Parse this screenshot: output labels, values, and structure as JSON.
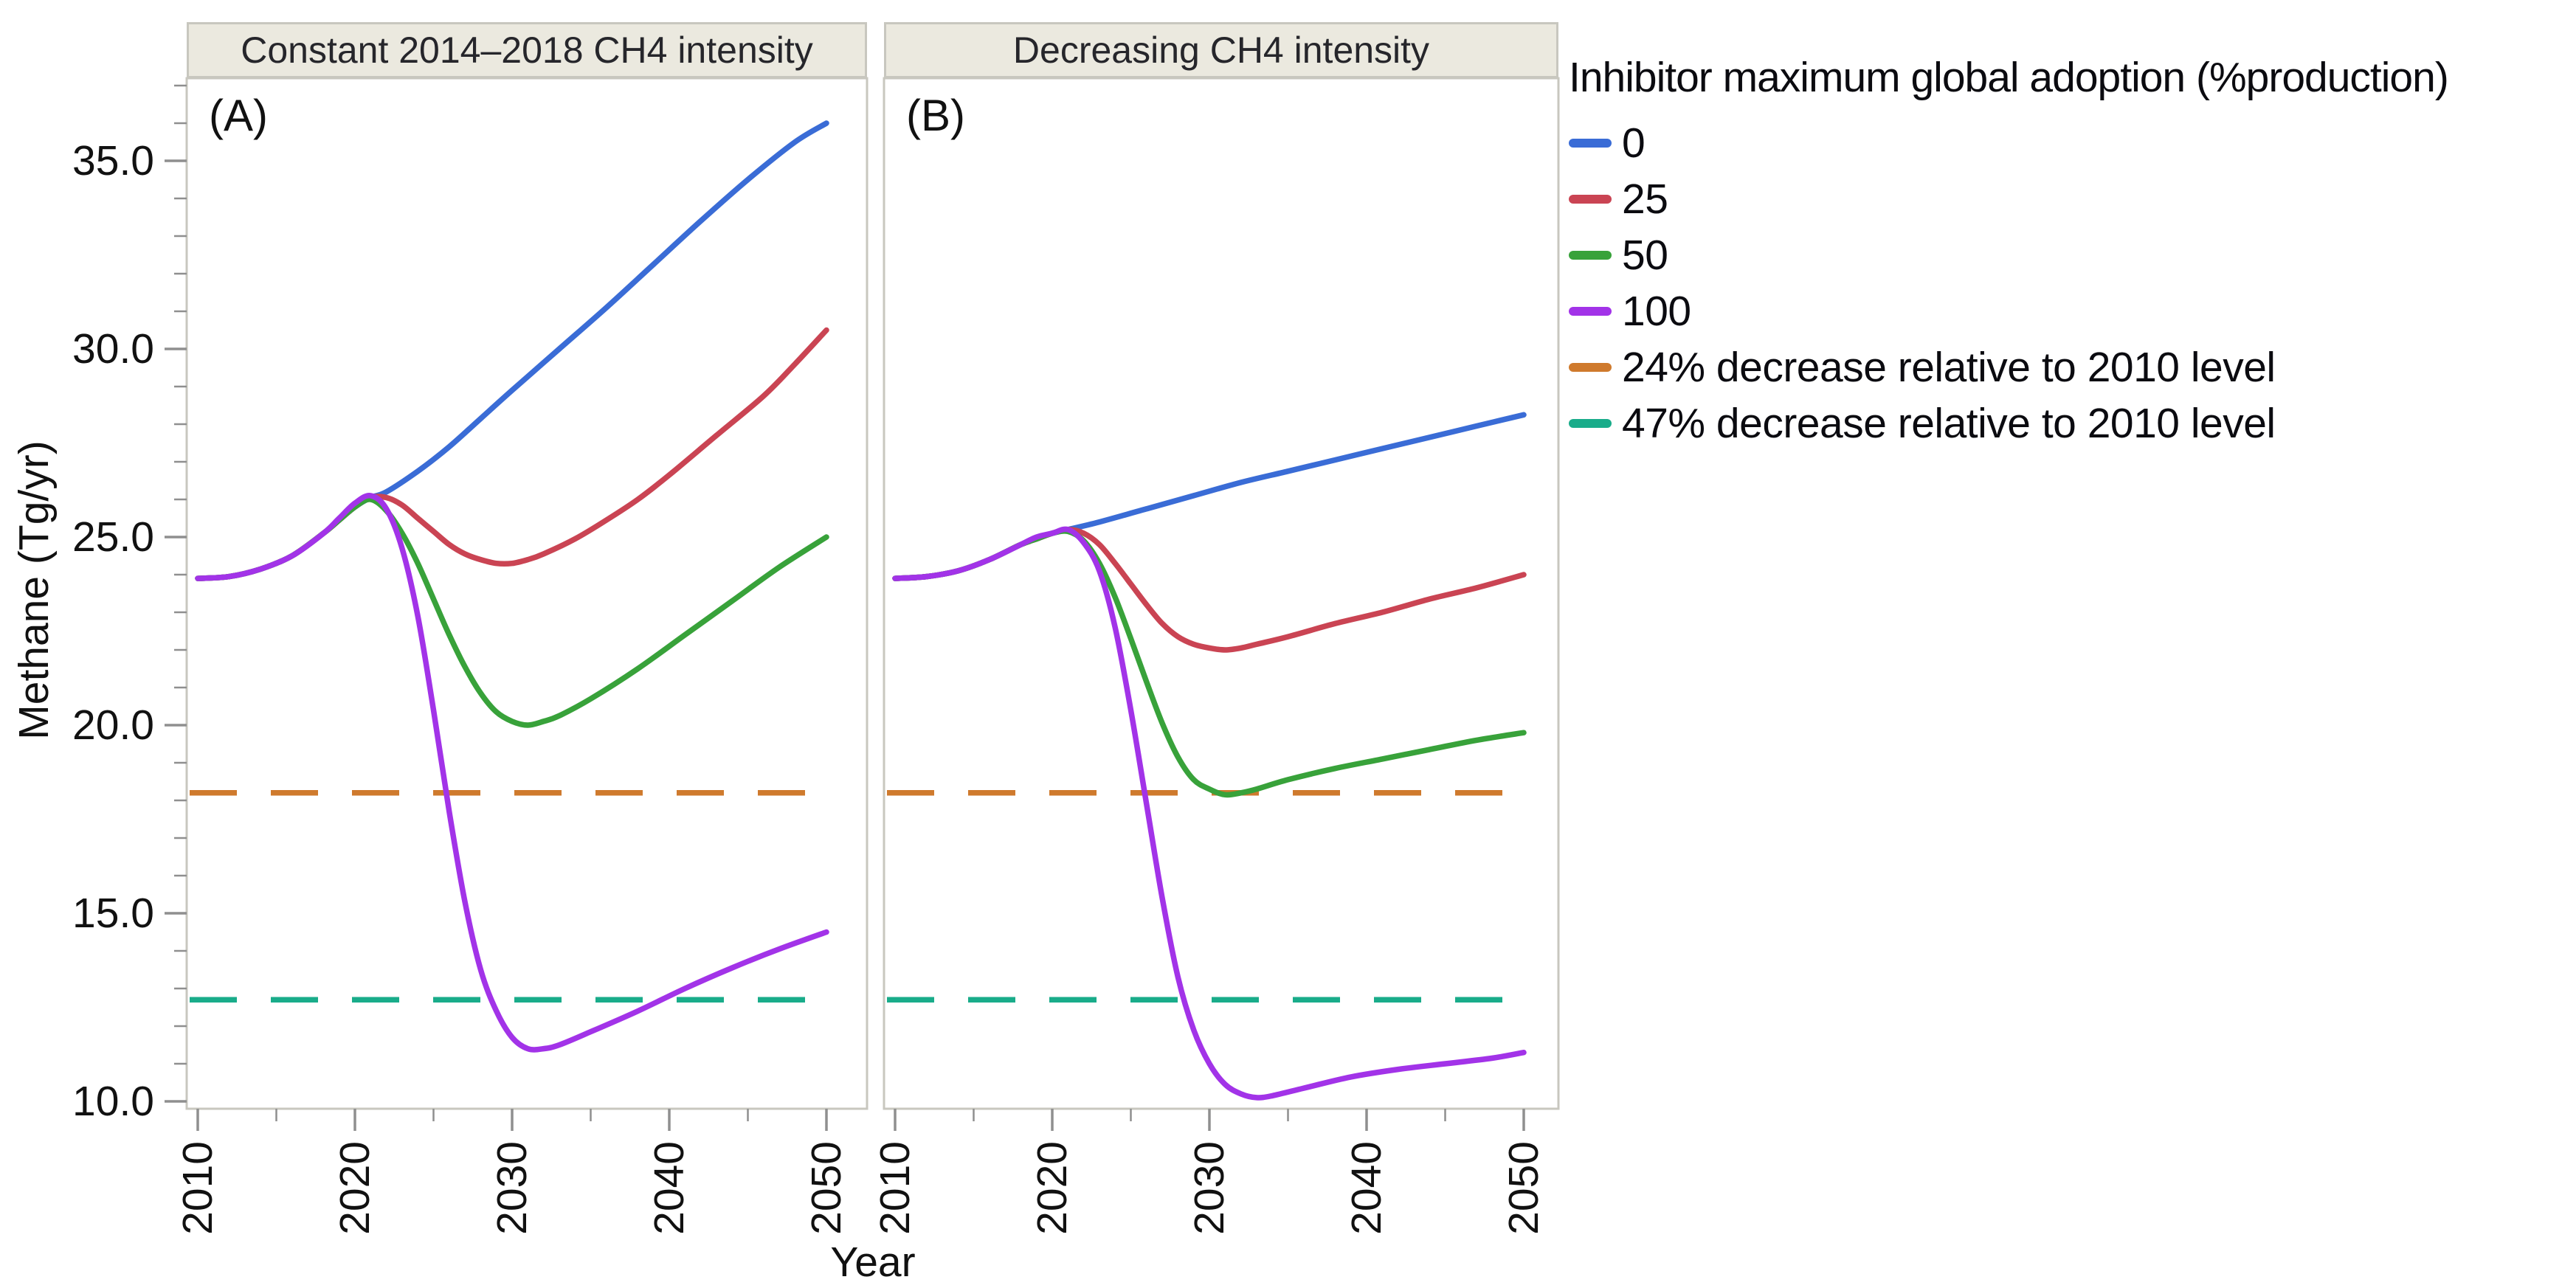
{
  "figure": {
    "y_axis_title": "Methane (Tg/yr)",
    "x_axis_title": "Year"
  },
  "legend": {
    "title": "Inhibitor maximum global adoption (%production)",
    "entries": [
      {
        "label": "0",
        "color": "#3A6CD6",
        "dashed": false
      },
      {
        "label": "25",
        "color": "#CA4453",
        "dashed": false
      },
      {
        "label": "50",
        "color": "#38A23A",
        "dashed": false
      },
      {
        "label": "100",
        "color": "#A233E8",
        "dashed": false
      },
      {
        "label": "24% decrease relative to 2010 level",
        "color": "#CF7A2D",
        "dashed": true
      },
      {
        "label": "47% decrease relative to 2010 level",
        "color": "#19AC8A",
        "dashed": true
      }
    ]
  },
  "colors": {
    "frame": "#C8C7BF",
    "tick": "#8F8F8F",
    "tick_text": "#111111",
    "strip_bg": "#EBE9DF",
    "strip_border": "#C8C7BF"
  },
  "chart_data": [
    {
      "type": "line",
      "title": "Constant 2014–2018 CH4 intensity",
      "panel_label": "(A)",
      "xlabel": "Year",
      "ylabel": "Methane (Tg/yr)",
      "x_range": [
        2009,
        2053
      ],
      "y_range": [
        9.8,
        37.3
      ],
      "x_ticks": [
        "2010",
        "2020",
        "2030",
        "2040",
        "2050"
      ],
      "x_minor_ticks": [
        2015,
        2025,
        2035,
        2045
      ],
      "y_ticks": [
        {
          "label": "10.0",
          "value": 10
        },
        {
          "label": "15.0",
          "value": 15
        },
        {
          "label": "20.0",
          "value": 20
        },
        {
          "label": "25.0",
          "value": 25
        },
        {
          "label": "30.0",
          "value": 30
        },
        {
          "label": "35.0",
          "value": 35
        }
      ],
      "series": [
        {
          "name": "0",
          "color": "#3A6CD6",
          "points": [
            [
              2010,
              23.9
            ],
            [
              2012,
              23.95
            ],
            [
              2014,
              24.15
            ],
            [
              2016,
              24.5
            ],
            [
              2018,
              25.1
            ],
            [
              2019,
              25.45
            ],
            [
              2020,
              25.8
            ],
            [
              2021,
              26.05
            ],
            [
              2022,
              26.2
            ],
            [
              2024,
              26.75
            ],
            [
              2026,
              27.4
            ],
            [
              2028,
              28.15
            ],
            [
              2030,
              28.9
            ],
            [
              2033,
              30.0
            ],
            [
              2036,
              31.1
            ],
            [
              2039,
              32.25
            ],
            [
              2042,
              33.4
            ],
            [
              2045,
              34.5
            ],
            [
              2048,
              35.5
            ],
            [
              2050,
              36.0
            ]
          ]
        },
        {
          "name": "25",
          "color": "#CA4453",
          "points": [
            [
              2010,
              23.9
            ],
            [
              2012,
              23.95
            ],
            [
              2014,
              24.15
            ],
            [
              2016,
              24.5
            ],
            [
              2018,
              25.1
            ],
            [
              2019,
              25.45
            ],
            [
              2020,
              25.8
            ],
            [
              2021,
              26.05
            ],
            [
              2022,
              26.05
            ],
            [
              2023,
              25.85
            ],
            [
              2024,
              25.5
            ],
            [
              2025,
              25.15
            ],
            [
              2026,
              24.8
            ],
            [
              2027,
              24.55
            ],
            [
              2028,
              24.4
            ],
            [
              2029,
              24.3
            ],
            [
              2030,
              24.3
            ],
            [
              2031,
              24.4
            ],
            [
              2032,
              24.55
            ],
            [
              2034,
              24.95
            ],
            [
              2036,
              25.45
            ],
            [
              2038,
              26.0
            ],
            [
              2040,
              26.65
            ],
            [
              2043,
              27.7
            ],
            [
              2046,
              28.75
            ],
            [
              2048,
              29.6
            ],
            [
              2050,
              30.5
            ]
          ]
        },
        {
          "name": "50",
          "color": "#38A23A",
          "points": [
            [
              2010,
              23.9
            ],
            [
              2012,
              23.95
            ],
            [
              2014,
              24.15
            ],
            [
              2016,
              24.5
            ],
            [
              2018,
              25.1
            ],
            [
              2019,
              25.45
            ],
            [
              2020,
              25.8
            ],
            [
              2021,
              26.0
            ],
            [
              2022,
              25.7
            ],
            [
              2023,
              25.1
            ],
            [
              2024,
              24.3
            ],
            [
              2025,
              23.35
            ],
            [
              2026,
              22.4
            ],
            [
              2027,
              21.55
            ],
            [
              2028,
              20.85
            ],
            [
              2029,
              20.35
            ],
            [
              2030,
              20.1
            ],
            [
              2031,
              20.0
            ],
            [
              2032,
              20.1
            ],
            [
              2033,
              20.25
            ],
            [
              2035,
              20.7
            ],
            [
              2038,
              21.5
            ],
            [
              2041,
              22.4
            ],
            [
              2044,
              23.3
            ],
            [
              2047,
              24.2
            ],
            [
              2050,
              25.0
            ]
          ]
        },
        {
          "name": "100",
          "color": "#A233E8",
          "points": [
            [
              2010,
              23.9
            ],
            [
              2012,
              23.95
            ],
            [
              2014,
              24.15
            ],
            [
              2016,
              24.5
            ],
            [
              2018,
              25.1
            ],
            [
              2019,
              25.5
            ],
            [
              2020,
              25.9
            ],
            [
              2021,
              26.1
            ],
            [
              2022,
              25.75
            ],
            [
              2023,
              24.7
            ],
            [
              2024,
              22.9
            ],
            [
              2025,
              20.4
            ],
            [
              2026,
              17.7
            ],
            [
              2027,
              15.3
            ],
            [
              2028,
              13.5
            ],
            [
              2029,
              12.4
            ],
            [
              2030,
              11.7
            ],
            [
              2031,
              11.4
            ],
            [
              2032,
              11.4
            ],
            [
              2033,
              11.5
            ],
            [
              2035,
              11.85
            ],
            [
              2038,
              12.4
            ],
            [
              2041,
              13.0
            ],
            [
              2044,
              13.55
            ],
            [
              2047,
              14.05
            ],
            [
              2050,
              14.5
            ]
          ]
        }
      ],
      "ref_lines": [
        {
          "name": "24% decrease relative to 2010 level",
          "value": 18.2,
          "color": "#CF7A2D",
          "dashed": true
        },
        {
          "name": "47% decrease relative to 2010 level",
          "value": 12.7,
          "color": "#19AC8A",
          "dashed": true
        }
      ]
    },
    {
      "type": "line",
      "title": "Decreasing CH4 intensity",
      "panel_label": "(B)",
      "xlabel": "Year",
      "ylabel": "Methane (Tg/yr)",
      "x_range": [
        2009,
        2053
      ],
      "y_range": [
        9.8,
        37.3
      ],
      "x_ticks": [
        "2010",
        "2020",
        "2030",
        "2040",
        "2050"
      ],
      "x_minor_ticks": [
        2015,
        2025,
        2035,
        2045
      ],
      "y_ticks": [
        {
          "label": "10.0",
          "value": 10
        },
        {
          "label": "15.0",
          "value": 15
        },
        {
          "label": "20.0",
          "value": 20
        },
        {
          "label": "25.0",
          "value": 25
        },
        {
          "label": "30.0",
          "value": 30
        },
        {
          "label": "35.0",
          "value": 35
        }
      ],
      "series": [
        {
          "name": "0",
          "color": "#3A6CD6",
          "points": [
            [
              2010,
              23.9
            ],
            [
              2012,
              23.95
            ],
            [
              2014,
              24.1
            ],
            [
              2016,
              24.4
            ],
            [
              2018,
              24.8
            ],
            [
              2019,
              24.95
            ],
            [
              2020,
              25.1
            ],
            [
              2021,
              25.2
            ],
            [
              2023,
              25.4
            ],
            [
              2026,
              25.75
            ],
            [
              2029,
              26.1
            ],
            [
              2032,
              26.45
            ],
            [
              2035,
              26.75
            ],
            [
              2038,
              27.05
            ],
            [
              2041,
              27.35
            ],
            [
              2044,
              27.65
            ],
            [
              2047,
              27.95
            ],
            [
              2050,
              28.25
            ]
          ]
        },
        {
          "name": "25",
          "color": "#CA4453",
          "points": [
            [
              2010,
              23.9
            ],
            [
              2012,
              23.95
            ],
            [
              2014,
              24.1
            ],
            [
              2016,
              24.4
            ],
            [
              2018,
              24.8
            ],
            [
              2019,
              24.95
            ],
            [
              2020,
              25.1
            ],
            [
              2021,
              25.2
            ],
            [
              2022,
              25.1
            ],
            [
              2023,
              24.8
            ],
            [
              2024,
              24.3
            ],
            [
              2025,
              23.75
            ],
            [
              2026,
              23.2
            ],
            [
              2027,
              22.7
            ],
            [
              2028,
              22.35
            ],
            [
              2029,
              22.15
            ],
            [
              2030,
              22.05
            ],
            [
              2031,
              22.0
            ],
            [
              2032,
              22.05
            ],
            [
              2033,
              22.15
            ],
            [
              2035,
              22.35
            ],
            [
              2038,
              22.7
            ],
            [
              2041,
              23.0
            ],
            [
              2044,
              23.35
            ],
            [
              2047,
              23.65
            ],
            [
              2050,
              24.0
            ]
          ]
        },
        {
          "name": "50",
          "color": "#38A23A",
          "points": [
            [
              2010,
              23.9
            ],
            [
              2012,
              23.95
            ],
            [
              2014,
              24.1
            ],
            [
              2016,
              24.4
            ],
            [
              2018,
              24.8
            ],
            [
              2019,
              24.95
            ],
            [
              2020,
              25.1
            ],
            [
              2021,
              25.15
            ],
            [
              2022,
              24.9
            ],
            [
              2023,
              24.3
            ],
            [
              2024,
              23.4
            ],
            [
              2025,
              22.3
            ],
            [
              2026,
              21.15
            ],
            [
              2027,
              20.05
            ],
            [
              2028,
              19.15
            ],
            [
              2029,
              18.55
            ],
            [
              2030,
              18.3
            ],
            [
              2031,
              18.15
            ],
            [
              2032,
              18.2
            ],
            [
              2033,
              18.3
            ],
            [
              2035,
              18.55
            ],
            [
              2038,
              18.85
            ],
            [
              2041,
              19.1
            ],
            [
              2044,
              19.35
            ],
            [
              2047,
              19.6
            ],
            [
              2050,
              19.8
            ]
          ]
        },
        {
          "name": "100",
          "color": "#A233E8",
          "points": [
            [
              2010,
              23.9
            ],
            [
              2012,
              23.95
            ],
            [
              2014,
              24.1
            ],
            [
              2016,
              24.4
            ],
            [
              2018,
              24.8
            ],
            [
              2019,
              25.0
            ],
            [
              2020,
              25.1
            ],
            [
              2021,
              25.2
            ],
            [
              2022,
              24.85
            ],
            [
              2023,
              24.1
            ],
            [
              2024,
              22.6
            ],
            [
              2025,
              20.4
            ],
            [
              2026,
              17.9
            ],
            [
              2027,
              15.4
            ],
            [
              2028,
              13.3
            ],
            [
              2029,
              11.9
            ],
            [
              2030,
              11.0
            ],
            [
              2031,
              10.45
            ],
            [
              2032,
              10.2
            ],
            [
              2033,
              10.1
            ],
            [
              2034,
              10.15
            ],
            [
              2036,
              10.35
            ],
            [
              2039,
              10.65
            ],
            [
              2042,
              10.85
            ],
            [
              2045,
              11.0
            ],
            [
              2048,
              11.15
            ],
            [
              2050,
              11.3
            ]
          ]
        }
      ],
      "ref_lines": [
        {
          "name": "24% decrease relative to 2010 level",
          "value": 18.2,
          "color": "#CF7A2D",
          "dashed": true
        },
        {
          "name": "47% decrease relative to 2010 level",
          "value": 12.7,
          "color": "#19AC8A",
          "dashed": true
        }
      ]
    }
  ]
}
